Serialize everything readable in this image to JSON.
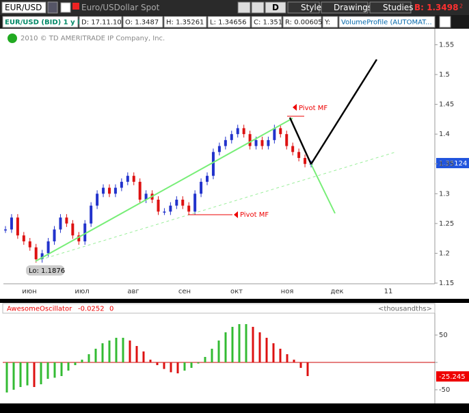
{
  "toolbar": {
    "symbol": "EUR/USD",
    "description": "Euro/USDollar Spot",
    "aggregation": "D",
    "style": "Style",
    "drawings": "Drawings",
    "studies": "Studies",
    "bid": "B: 1.3498",
    "bid_fraction": "2"
  },
  "info_bar": {
    "title": "EUR/USD (BID) 1 y D",
    "date": "D: 17.11.10",
    "open": "O: 1.3487",
    "high": "H: 1.35261",
    "low": "L: 1.34656",
    "close": "C: 1.35124",
    "range": "R: 0.00605",
    "y": "Y:",
    "study": "VolumeProfile (AUTOMAT..."
  },
  "copyright": "2010 © TD AMERITRADE IP Company, Inc.",
  "price_chart": {
    "ylim": [
      1.15,
      1.57
    ],
    "yticks": [
      1.15,
      1.2,
      1.25,
      1.3,
      1.35,
      1.4,
      1.45,
      1.5,
      1.55
    ],
    "months": [
      "июн",
      "июл",
      "авг",
      "сен",
      "окт",
      "ноя",
      "дек",
      "11"
    ],
    "closes": [
      1.24,
      1.26,
      1.23,
      1.22,
      1.21,
      1.19,
      1.2,
      1.22,
      1.24,
      1.26,
      1.25,
      1.23,
      1.22,
      1.25,
      1.28,
      1.3,
      1.31,
      1.3,
      1.31,
      1.32,
      1.33,
      1.32,
      1.29,
      1.3,
      1.29,
      1.27,
      1.27,
      1.28,
      1.29,
      1.28,
      1.27,
      1.3,
      1.32,
      1.33,
      1.37,
      1.38,
      1.39,
      1.4,
      1.41,
      1.4,
      1.38,
      1.39,
      1.38,
      1.39,
      1.41,
      1.4,
      1.38,
      1.37,
      1.36,
      1.35,
      1.35
    ],
    "last_price": "1.35124",
    "pivot_high": "Pivot MF",
    "pivot_low": "Pivot MF",
    "low_label": "Lo: 1.1876"
  },
  "oscillator": {
    "name": "AwesomeOscillator",
    "value": "-0.0252",
    "zero": "0",
    "units": "<thousandths>",
    "ylim": [
      -75,
      90
    ],
    "yticks": [
      50,
      0,
      -50
    ],
    "values": [
      -55,
      -50,
      -45,
      -42,
      -45,
      -40,
      -30,
      -28,
      -25,
      -15,
      -5,
      5,
      15,
      25,
      35,
      40,
      45,
      45,
      40,
      30,
      20,
      5,
      -5,
      -12,
      -18,
      -20,
      -15,
      -10,
      -2,
      10,
      25,
      40,
      55,
      65,
      70,
      70,
      65,
      55,
      45,
      35,
      25,
      15,
      5,
      -10,
      -25
    ],
    "last_label": "-25.245"
  }
}
